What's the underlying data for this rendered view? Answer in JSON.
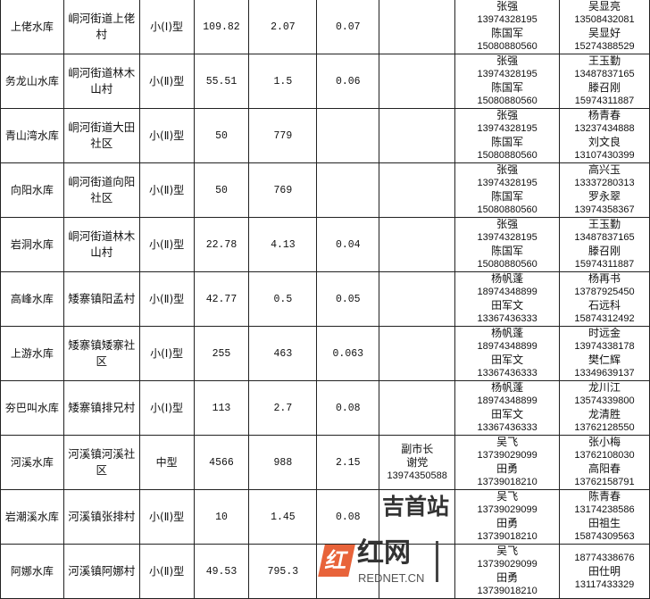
{
  "rows": [
    {
      "name": "上佬水库",
      "location": "峒河街道上佬村",
      "type": "小(Ⅰ)型",
      "v1": "109.82",
      "v2": "2.07",
      "v3": "0.07",
      "leader": [],
      "c1": [
        [
          "张强",
          "13974328195"
        ],
        [
          "陈国军",
          "15080880560"
        ]
      ],
      "c2": [
        [
          "吴显亮",
          "13508432081"
        ],
        [
          "吴显好",
          "15274388529"
        ]
      ]
    },
    {
      "name": "务龙山水库",
      "location": "峒河街道林木山村",
      "type": "小(Ⅱ)型",
      "v1": "55.51",
      "v2": "1.5",
      "v3": "0.06",
      "leader": [],
      "c1": [
        [
          "张强",
          "13974328195"
        ],
        [
          "陈国军",
          "15080880560"
        ]
      ],
      "c2": [
        [
          "王玉勤",
          "13487837165"
        ],
        [
          "滕召刚",
          "15974311887"
        ]
      ]
    },
    {
      "name": "青山湾水库",
      "location": "峒河街道大田社区",
      "type": "小(Ⅱ)型",
      "v1": "50",
      "v2": "779",
      "v3": "",
      "leader": [],
      "c1": [
        [
          "张强",
          "13974328195"
        ],
        [
          "陈国军",
          "15080880560"
        ]
      ],
      "c2": [
        [
          "杨青春",
          "13237434888"
        ],
        [
          "刘文良",
          "13107430399"
        ]
      ]
    },
    {
      "name": "向阳水库",
      "location": "峒河街道向阳社区",
      "type": "小(Ⅱ)型",
      "v1": "50",
      "v2": "769",
      "v3": "",
      "leader": [],
      "c1": [
        [
          "张强",
          "13974328195"
        ],
        [
          "陈国军",
          "15080880560"
        ]
      ],
      "c2": [
        [
          "高兴玉",
          "13337280313"
        ],
        [
          "罗永翠",
          "13974358367"
        ]
      ]
    },
    {
      "name": "岩洞水库",
      "location": "峒河街道林木山村",
      "type": "小(Ⅱ)型",
      "v1": "22.78",
      "v2": "4.13",
      "v3": "0.04",
      "leader": [],
      "c1": [
        [
          "张强",
          "13974328195"
        ],
        [
          "陈国军",
          "15080880560"
        ]
      ],
      "c2": [
        [
          "王玉勤",
          "13487837165"
        ],
        [
          "滕召刚",
          "15974311887"
        ]
      ]
    },
    {
      "name": "高峰水库",
      "location": "矮寨镇阳孟村",
      "type": "小(Ⅱ)型",
      "v1": "42.77",
      "v2": "0.5",
      "v3": "0.05",
      "leader": [],
      "c1": [
        [
          "杨帆蓬",
          "18974348899"
        ],
        [
          "田军文",
          "13367436333"
        ]
      ],
      "c2": [
        [
          "杨再书",
          "13787925450"
        ],
        [
          "石远科",
          "15874312492"
        ]
      ]
    },
    {
      "name": "上游水库",
      "location": "矮寨镇矮寨社区",
      "type": "小(Ⅰ)型",
      "v1": "255",
      "v2": "463",
      "v3": "0.063",
      "leader": [],
      "c1": [
        [
          "杨帆蓬",
          "18974348899"
        ],
        [
          "田军文",
          "13367436333"
        ]
      ],
      "c2": [
        [
          "时远金",
          "13974338178"
        ],
        [
          "樊仁辉",
          "13349639137"
        ]
      ]
    },
    {
      "name": "夯巴叫水库",
      "location": "矮寨镇排兄村",
      "type": "小(Ⅰ)型",
      "v1": "113",
      "v2": "2.7",
      "v3": "0.08",
      "leader": [],
      "c1": [
        [
          "杨帆蓬",
          "18974348899"
        ],
        [
          "田军文",
          "13367436333"
        ]
      ],
      "c2": [
        [
          "龙川江",
          "13574339800"
        ],
        [
          "龙清胜",
          "13762128550"
        ]
      ]
    },
    {
      "name": "河溪水库",
      "location": "河溪镇河溪社区",
      "type": "中型",
      "v1": "4566",
      "v2": "988",
      "v3": "2.15",
      "leader": [
        "副市长",
        "谢党",
        "13974350588"
      ],
      "c1": [
        [
          "吴飞",
          "13739029099"
        ],
        [
          "田勇",
          "13739018210"
        ]
      ],
      "c2": [
        [
          "张小梅",
          "13762108030"
        ],
        [
          "高阳春",
          "13762158791"
        ]
      ]
    },
    {
      "name": "岩潮溪水库",
      "location": "河溪镇张排村",
      "type": "小(Ⅱ)型",
      "v1": "10",
      "v2": "1.45",
      "v3": "0.08",
      "leader": [],
      "c1": [
        [
          "吴飞",
          "13739029099"
        ],
        [
          "田勇",
          "13739018210"
        ]
      ],
      "c2": [
        [
          "陈青春",
          "13174238586"
        ],
        [
          "田祖生",
          "15874309563"
        ]
      ]
    },
    {
      "name": "阿娜水库",
      "location": "河溪镇阿娜村",
      "type": "小(Ⅱ)型",
      "v1": "49.53",
      "v2": "795.3",
      "v3": "",
      "leader": [],
      "c1": [
        [
          "吴飞",
          "13739029099"
        ],
        [
          "田勇",
          "13739018210"
        ]
      ],
      "c2": [
        [
          "",
          "18774338676"
        ],
        [
          "田仕明",
          "13117433329"
        ]
      ]
    }
  ],
  "watermark": {
    "logo_text": "红网",
    "logo_sub": "REDNET.CN",
    "site": "吉首站",
    "brand_color": "#e8633a"
  }
}
